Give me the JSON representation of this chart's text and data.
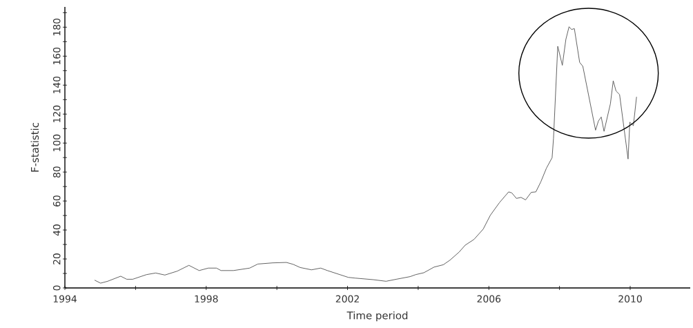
{
  "chart_data": {
    "type": "line",
    "xlabel": "Time period",
    "ylabel": "F-statistic",
    "color": "#505050",
    "x": [
      1994.84,
      1995.01,
      1995.21,
      1995.58,
      1995.75,
      1995.92,
      1996.31,
      1996.57,
      1996.83,
      1997.18,
      1997.51,
      1997.8,
      1998.06,
      1998.29,
      1998.42,
      1998.77,
      1999.23,
      1999.46,
      1999.88,
      2000.27,
      2000.46,
      2000.66,
      2000.98,
      2001.24,
      2001.43,
      2002.02,
      2002.21,
      2002.73,
      2003.09,
      2003.38,
      2003.77,
      2003.93,
      2004.16,
      2004.45,
      2004.71,
      2004.9,
      2005.16,
      2005.33,
      2005.58,
      2005.84,
      2006.04,
      2006.3,
      2006.56,
      2006.65,
      2006.78,
      2006.91,
      2007.04,
      2007.2,
      2007.33,
      2007.47,
      2007.63,
      2007.79,
      2007.83,
      2007.95,
      2008.08,
      2008.18,
      2008.27,
      2008.34,
      2008.42,
      2008.57,
      2008.66,
      2009.02,
      2009.1,
      2009.18,
      2009.26,
      2009.44,
      2009.52,
      2009.6,
      2009.7,
      2009.94,
      2009.99,
      2010.09,
      2010.18
    ],
    "values": [
      5.4,
      3.3,
      4.6,
      8.1,
      6,
      6,
      9.2,
      10.3,
      8.9,
      11.6,
      15.6,
      12,
      13.7,
      13.7,
      12,
      12,
      13.7,
      16.5,
      17.3,
      17.6,
      16.3,
      14.1,
      12.5,
      13.7,
      12,
      7.3,
      6.8,
      5.7,
      4.6,
      6,
      7.8,
      9.2,
      10.5,
      14.4,
      16,
      19.2,
      24.8,
      29.5,
      33.5,
      40.6,
      50.1,
      58.9,
      66.3,
      65.6,
      61.8,
      62.5,
      60.8,
      66,
      66.3,
      73.2,
      82.7,
      89.9,
      103.3,
      166.8,
      153.7,
      171.6,
      180.3,
      178.4,
      179,
      155.7,
      153,
      108.9,
      115.2,
      118,
      108.1,
      127.1,
      143,
      135.9,
      133.5,
      89,
      114.4,
      112,
      131.9
    ],
    "xlim": [
      1994,
      2011.7
    ],
    "ylim": [
      0,
      194
    ],
    "xticks": [
      1994,
      {
        "value": 1996,
        "label": null
      },
      1998,
      {
        "value": 2000,
        "label": null
      },
      2002,
      {
        "value": 2004,
        "label": null
      },
      2006,
      {
        "value": 2008,
        "label": null
      },
      2010
    ],
    "yticks": [
      0,
      {
        "value": 10,
        "label": null
      },
      20,
      {
        "value": 30,
        "label": null
      },
      40,
      {
        "value": 50,
        "label": null
      },
      60,
      {
        "value": 70,
        "label": null
      },
      80,
      {
        "value": 90,
        "label": null
      },
      100,
      {
        "value": 110,
        "label": null
      },
      120,
      {
        "value": 130,
        "label": null
      },
      140,
      {
        "value": 150,
        "label": null
      },
      160,
      {
        "value": 170,
        "label": null
      },
      180,
      {
        "value": 190,
        "label": null
      }
    ]
  }
}
